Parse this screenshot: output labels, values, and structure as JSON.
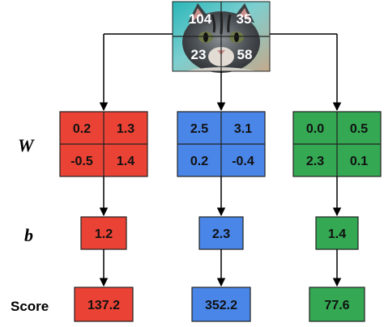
{
  "input_image": {
    "icon": "kitten-photo",
    "pixels": [
      "104",
      "35",
      "23",
      "58"
    ]
  },
  "labels": {
    "w": "W",
    "b": "b",
    "score": "Score"
  },
  "classes": [
    {
      "color": "#ea4335",
      "weights": [
        "0.2",
        "1.3",
        "-0.5",
        "1.4"
      ],
      "bias": "1.2",
      "score": "137.2"
    },
    {
      "color": "#4a86e8",
      "weights": [
        "2.5",
        "3.1",
        "0.2",
        "-0.4"
      ],
      "bias": "2.3",
      "score": "352.2"
    },
    {
      "color": "#34a853",
      "weights": [
        "0.0",
        "0.5",
        "2.3",
        "0.1"
      ],
      "bias": "1.4",
      "score": "77.6"
    }
  ]
}
